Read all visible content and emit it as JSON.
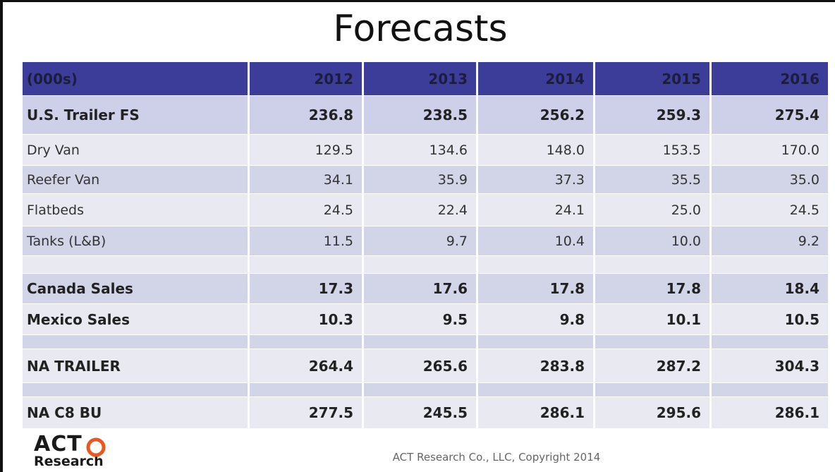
{
  "title": "Forecasts",
  "table": {
    "header": [
      "(000s)",
      "2012",
      "2013",
      "2014",
      "2015",
      "2016"
    ],
    "rows": [
      [
        "U.S. Trailer FS",
        "236.8",
        "238.5",
        "256.2",
        "259.3",
        "275.4"
      ],
      [
        "Dry Van",
        "129.5",
        "134.6",
        "148.0",
        "153.5",
        "170.0"
      ],
      [
        "Reefer Van",
        "34.1",
        "35.9",
        "37.3",
        "35.5",
        "35.0"
      ],
      [
        "Flatbeds",
        "24.5",
        "22.4",
        "24.1",
        "25.0",
        "24.5"
      ],
      [
        "Tanks (L&B)",
        "11.5",
        "9.7",
        "10.4",
        "10.0",
        "9.2"
      ],
      [
        "Canada Sales",
        "17.3",
        "17.6",
        "17.8",
        "17.8",
        "18.4"
      ],
      [
        "Mexico Sales",
        "10.3",
        "9.5",
        "9.8",
        "10.1",
        "10.5"
      ],
      [
        "NA TRAILER",
        "264.4",
        "265.6",
        "283.8",
        "287.2",
        "304.3"
      ],
      [
        "NA C8 BU",
        "277.5",
        "245.5",
        "286.1",
        "295.6",
        "286.1"
      ]
    ]
  },
  "footer": {
    "logo_top": "ACT",
    "logo_bottom": "Research",
    "copyright": "ACT Research Co., LLC, Copyright 2014"
  }
}
